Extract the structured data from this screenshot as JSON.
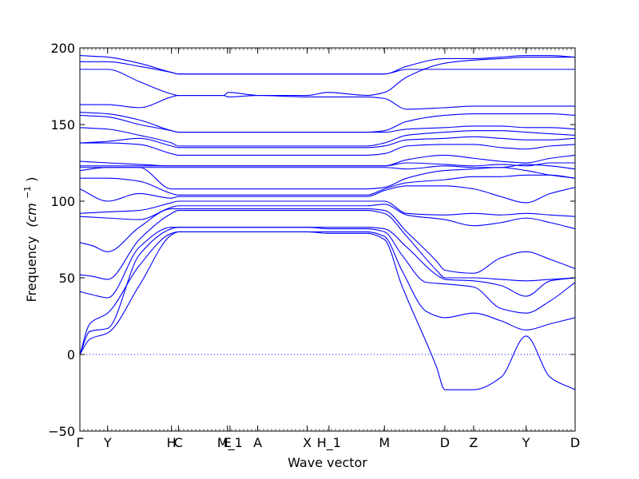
{
  "chart_data": {
    "type": "line",
    "xlabel": "Wave vector",
    "ylabel": "Frequency",
    "ylabel_unit": "(cm",
    "ylabel_exp": "−1",
    "ylabel_close": ")",
    "ylim": [
      -50,
      200
    ],
    "yticks": [
      -50,
      0,
      50,
      100,
      150,
      200
    ],
    "ytick_labels": [
      "−50",
      "0",
      "50",
      "100",
      "150",
      "200"
    ],
    "x_domain": [
      0,
      1
    ],
    "zero_line": true,
    "grid": false,
    "line_color": "#0000ff",
    "zero_line_color": "#0000ff",
    "kpoints": [
      {
        "label": "Γ",
        "x": 0.0
      },
      {
        "label": "Y",
        "x": 0.056
      },
      {
        "label": "H",
        "x": 0.185
      },
      {
        "label": "C",
        "x": 0.199
      },
      {
        "label": "E",
        "x": 0.298
      },
      {
        "label": "M_1",
        "x": 0.303
      },
      {
        "label": "A",
        "x": 0.359
      },
      {
        "label": "X",
        "x": 0.459
      },
      {
        "label": "H_1",
        "x": 0.503
      },
      {
        "label": "M",
        "x": 0.615
      },
      {
        "label": "D",
        "x": 0.737
      },
      {
        "label": "Z",
        "x": 0.795
      },
      {
        "label": "Y",
        "x": 0.901
      },
      {
        "label": "D",
        "x": 1.0
      }
    ],
    "series": [
      {
        "x": [
          0,
          0.02,
          0.056,
          0.12,
          0.185,
          0.199,
          0.25,
          0.3,
          0.36,
          0.46,
          0.5,
          0.58,
          0.615,
          0.65,
          0.72,
          0.737,
          0.795,
          0.85,
          0.901,
          0.95,
          1.0
        ],
        "y": [
          0,
          10,
          14,
          45,
          78,
          80,
          80,
          80,
          80,
          80,
          79,
          79,
          75,
          45,
          -8,
          -23,
          -23,
          -15,
          12,
          -15,
          -23
        ]
      },
      {
        "x": [
          0,
          0.02,
          0.056,
          0.12,
          0.185,
          0.199,
          0.25,
          0.3,
          0.36,
          0.46,
          0.5,
          0.58,
          0.615,
          0.65,
          0.7,
          0.737,
          0.795,
          0.85,
          0.901,
          0.95,
          1.0
        ],
        "y": [
          0,
          20,
          27,
          58,
          79,
          80,
          80,
          80,
          80,
          80,
          80,
          80,
          77,
          55,
          28,
          24,
          27,
          22,
          16,
          20,
          24
        ]
      },
      {
        "x": [
          0,
          0.02,
          0.056,
          0.12,
          0.185,
          0.199,
          0.25,
          0.3,
          0.36,
          0.46,
          0.5,
          0.58,
          0.615,
          0.65,
          0.7,
          0.737,
          0.795,
          0.85,
          0.901,
          0.95,
          1.0
        ],
        "y": [
          0,
          15,
          17,
          65,
          82,
          83,
          83,
          83,
          83,
          83,
          82,
          82,
          80,
          65,
          47,
          46,
          44,
          30,
          27,
          35,
          47
        ]
      },
      {
        "x": [
          0,
          0.025,
          0.056,
          0.12,
          0.185,
          0.199,
          0.25,
          0.3,
          0.36,
          0.46,
          0.5,
          0.58,
          0.615,
          0.66,
          0.72,
          0.737,
          0.795,
          0.85,
          0.901,
          0.95,
          1.0
        ],
        "y": [
          41,
          39,
          37,
          70,
          83,
          83,
          83,
          83,
          83,
          83,
          83,
          83,
          82,
          70,
          52,
          49,
          48,
          45,
          38,
          48,
          50
        ]
      },
      {
        "x": [
          0,
          0.025,
          0.056,
          0.12,
          0.185,
          0.199,
          0.25,
          0.3,
          0.36,
          0.46,
          0.5,
          0.58,
          0.615,
          0.66,
          0.72,
          0.737,
          0.795,
          0.85,
          0.901,
          0.95,
          1.0
        ],
        "y": [
          52,
          51,
          49,
          75,
          92,
          94,
          94,
          94,
          94,
          94,
          94,
          94,
          92,
          77,
          55,
          50,
          50,
          49,
          48,
          49,
          50
        ]
      },
      {
        "x": [
          0,
          0.025,
          0.056,
          0.12,
          0.185,
          0.199,
          0.25,
          0.3,
          0.36,
          0.46,
          0.5,
          0.58,
          0.615,
          0.66,
          0.72,
          0.737,
          0.795,
          0.85,
          0.901,
          0.95,
          1.0
        ],
        "y": [
          73,
          71,
          67,
          83,
          95,
          95,
          95,
          95,
          95,
          95,
          95,
          95,
          94,
          80,
          61,
          55,
          53,
          63,
          67,
          62,
          56
        ]
      },
      {
        "x": [
          0,
          0.056,
          0.12,
          0.185,
          0.199,
          0.25,
          0.3,
          0.36,
          0.46,
          0.5,
          0.58,
          0.615,
          0.66,
          0.737,
          0.795,
          0.85,
          0.901,
          0.95,
          1.0
        ],
        "y": [
          90,
          89,
          88,
          96,
          97,
          97,
          97,
          97,
          97,
          97,
          97,
          98,
          91,
          88,
          84,
          86,
          89,
          86,
          82
        ]
      },
      {
        "x": [
          0,
          0.056,
          0.12,
          0.185,
          0.199,
          0.25,
          0.3,
          0.36,
          0.46,
          0.5,
          0.58,
          0.615,
          0.66,
          0.737,
          0.795,
          0.85,
          0.901,
          0.95,
          1.0
        ],
        "y": [
          92,
          93,
          94,
          99,
          100,
          100,
          100,
          100,
          100,
          100,
          100,
          100,
          92,
          91,
          92,
          91,
          92,
          91,
          90
        ]
      },
      {
        "x": [
          0,
          0.056,
          0.12,
          0.185,
          0.199,
          0.25,
          0.3,
          0.36,
          0.46,
          0.5,
          0.58,
          0.615,
          0.66,
          0.737,
          0.795,
          0.85,
          0.901,
          0.95,
          1.0
        ],
        "y": [
          108,
          100,
          105,
          102,
          103,
          103,
          103,
          103,
          103,
          103,
          103,
          107,
          110,
          110,
          108,
          103,
          99,
          105,
          109
        ]
      },
      {
        "x": [
          0,
          0.056,
          0.12,
          0.185,
          0.199,
          0.25,
          0.3,
          0.36,
          0.46,
          0.5,
          0.58,
          0.615,
          0.66,
          0.737,
          0.795,
          0.85,
          0.901,
          0.95,
          1.0
        ],
        "y": [
          115,
          115,
          113,
          105,
          104,
          104,
          104,
          104,
          104,
          104,
          104,
          108,
          112,
          114,
          116,
          116,
          117,
          117,
          115
        ]
      },
      {
        "x": [
          0,
          0.056,
          0.12,
          0.185,
          0.199,
          0.25,
          0.3,
          0.36,
          0.46,
          0.5,
          0.58,
          0.615,
          0.66,
          0.737,
          0.795,
          0.85,
          0.901,
          0.95,
          1.0
        ],
        "y": [
          120,
          122,
          122,
          108,
          108,
          108,
          108,
          108,
          108,
          108,
          108,
          109,
          115,
          120,
          121,
          122,
          120,
          117,
          115
        ]
      },
      {
        "x": [
          0,
          0.056,
          0.12,
          0.185,
          0.199,
          0.25,
          0.3,
          0.36,
          0.46,
          0.5,
          0.58,
          0.615,
          0.66,
          0.737,
          0.795,
          0.85,
          0.901,
          0.95,
          1.0
        ],
        "y": [
          122,
          122,
          122,
          122,
          122,
          122,
          122,
          122,
          122,
          122,
          122,
          122,
          121,
          123,
          122,
          122,
          124,
          123,
          121
        ]
      },
      {
        "x": [
          0,
          0.056,
          0.12,
          0.185,
          0.199,
          0.25,
          0.3,
          0.36,
          0.46,
          0.5,
          0.58,
          0.615,
          0.66,
          0.737,
          0.795,
          0.85,
          0.901,
          0.95,
          1.0
        ],
        "y": [
          123,
          123,
          123,
          123,
          123,
          123,
          123,
          123,
          123,
          123,
          123,
          123,
          125,
          124,
          123,
          124,
          123,
          125,
          125
        ]
      },
      {
        "x": [
          0,
          0.056,
          0.12,
          0.185,
          0.199,
          0.25,
          0.3,
          0.36,
          0.46,
          0.5,
          0.58,
          0.615,
          0.66,
          0.737,
          0.795,
          0.85,
          0.901,
          0.95,
          1.0
        ],
        "y": [
          126,
          125,
          124,
          123,
          123,
          123,
          123,
          123,
          123,
          123,
          123,
          123,
          127,
          130,
          128,
          126,
          125,
          128,
          130
        ]
      },
      {
        "x": [
          0,
          0.056,
          0.12,
          0.185,
          0.199,
          0.25,
          0.3,
          0.36,
          0.46,
          0.5,
          0.58,
          0.615,
          0.66,
          0.737,
          0.795,
          0.85,
          0.901,
          0.95,
          1.0
        ],
        "y": [
          138,
          138,
          137,
          131,
          130,
          130,
          130,
          130,
          130,
          130,
          130,
          131,
          136,
          137,
          137,
          135,
          134,
          136,
          137
        ]
      },
      {
        "x": [
          0,
          0.056,
          0.12,
          0.185,
          0.199,
          0.25,
          0.3,
          0.36,
          0.46,
          0.5,
          0.58,
          0.615,
          0.66,
          0.737,
          0.795,
          0.85,
          0.901,
          0.95,
          1.0
        ],
        "y": [
          138,
          139,
          141,
          136,
          135,
          135,
          135,
          135,
          135,
          135,
          135,
          136,
          140,
          141,
          142,
          141,
          140,
          140,
          141
        ]
      },
      {
        "x": [
          0,
          0.056,
          0.12,
          0.185,
          0.199,
          0.25,
          0.3,
          0.36,
          0.46,
          0.5,
          0.58,
          0.615,
          0.66,
          0.737,
          0.795,
          0.85,
          0.901,
          0.95,
          1.0
        ],
        "y": [
          148,
          147,
          143,
          138,
          136,
          136,
          136,
          136,
          136,
          136,
          136,
          138,
          143,
          145,
          146,
          146,
          145,
          144,
          143
        ]
      },
      {
        "x": [
          0,
          0.056,
          0.12,
          0.185,
          0.199,
          0.25,
          0.3,
          0.36,
          0.46,
          0.5,
          0.58,
          0.615,
          0.66,
          0.737,
          0.795,
          0.85,
          0.901,
          0.95,
          1.0
        ],
        "y": [
          156,
          155,
          150,
          146,
          145,
          145,
          145,
          145,
          145,
          145,
          145,
          145,
          147,
          148,
          149,
          149,
          148,
          148,
          147
        ]
      },
      {
        "x": [
          0,
          0.056,
          0.12,
          0.185,
          0.199,
          0.25,
          0.3,
          0.36,
          0.46,
          0.5,
          0.58,
          0.615,
          0.66,
          0.737,
          0.795,
          0.85,
          0.901,
          0.95,
          1.0
        ],
        "y": [
          158,
          157,
          153,
          146,
          145,
          145,
          145,
          145,
          145,
          145,
          145,
          146,
          152,
          156,
          157,
          157,
          157,
          157,
          156
        ]
      },
      {
        "x": [
          0,
          0.056,
          0.12,
          0.185,
          0.199,
          0.25,
          0.29,
          0.3,
          0.36,
          0.46,
          0.5,
          0.58,
          0.615,
          0.66,
          0.737,
          0.795,
          0.85,
          0.901,
          0.95,
          1.0
        ],
        "y": [
          163,
          163,
          161,
          168,
          169,
          169,
          169,
          168,
          169,
          168,
          168,
          168,
          167,
          160,
          161,
          162,
          162,
          162,
          162,
          162
        ]
      },
      {
        "x": [
          0,
          0.056,
          0.12,
          0.185,
          0.199,
          0.25,
          0.29,
          0.3,
          0.36,
          0.46,
          0.5,
          0.58,
          0.615,
          0.66,
          0.737,
          0.795,
          0.85,
          0.901,
          0.95,
          1.0
        ],
        "y": [
          186,
          186,
          178,
          170,
          169,
          169,
          169,
          171,
          169,
          169,
          171,
          169,
          171,
          181,
          190,
          192,
          193,
          194,
          194,
          194
        ]
      },
      {
        "x": [
          0,
          0.056,
          0.12,
          0.185,
          0.199,
          0.25,
          0.3,
          0.36,
          0.46,
          0.5,
          0.58,
          0.615,
          0.66,
          0.737,
          0.795,
          0.85,
          0.901,
          0.95,
          1.0
        ],
        "y": [
          191,
          191,
          188,
          184,
          183,
          183,
          183,
          183,
          183,
          183,
          183,
          183,
          186,
          186,
          186,
          186,
          186,
          186,
          186
        ]
      },
      {
        "x": [
          0,
          0.056,
          0.12,
          0.185,
          0.199,
          0.25,
          0.3,
          0.36,
          0.46,
          0.5,
          0.58,
          0.615,
          0.66,
          0.737,
          0.795,
          0.85,
          0.901,
          0.95,
          1.0
        ],
        "y": [
          195,
          194,
          190,
          184,
          183,
          183,
          183,
          183,
          183,
          183,
          183,
          183,
          188,
          193,
          193,
          194,
          195,
          195,
          194
        ]
      }
    ]
  }
}
